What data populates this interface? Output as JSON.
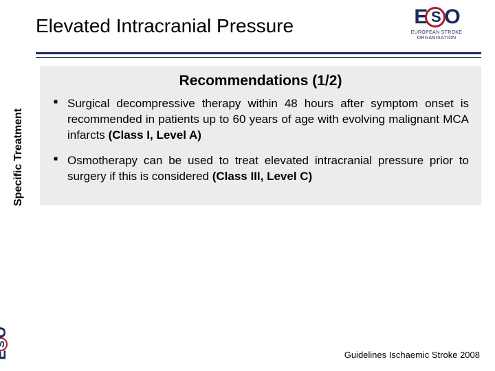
{
  "header": {
    "title": "Elevated Intracranial Pressure",
    "logo": {
      "letters": [
        "E",
        "S",
        "O"
      ],
      "subtitle_line1": "EUROPEAN STROKE",
      "subtitle_line2": "ORGANISATION"
    }
  },
  "styling": {
    "rule_color_primary": "#1a2a5a",
    "accent_color": "#b01c2e",
    "box_background": "#ececec",
    "page_background": "#ffffff",
    "title_fontsize": 28,
    "body_fontsize": 17,
    "box_title_fontsize": 21
  },
  "sidebar": {
    "label": "Specific Treatment"
  },
  "content": {
    "box_title": "Recommendations (1/2)",
    "bullets": [
      {
        "text": "Surgical decompressive therapy within 48 hours after symptom onset is recommended in patients up to 60 years of age with evolving malignant MCA infarcts ",
        "evidence": "(Class I, Level A)"
      },
      {
        "text": "Osmotherapy can be used to treat elevated intracranial pressure prior to surgery if this is considered ",
        "evidence": "(Class III, Level C)"
      }
    ]
  },
  "footer": {
    "text": "Guidelines Ischaemic Stroke 2008"
  }
}
